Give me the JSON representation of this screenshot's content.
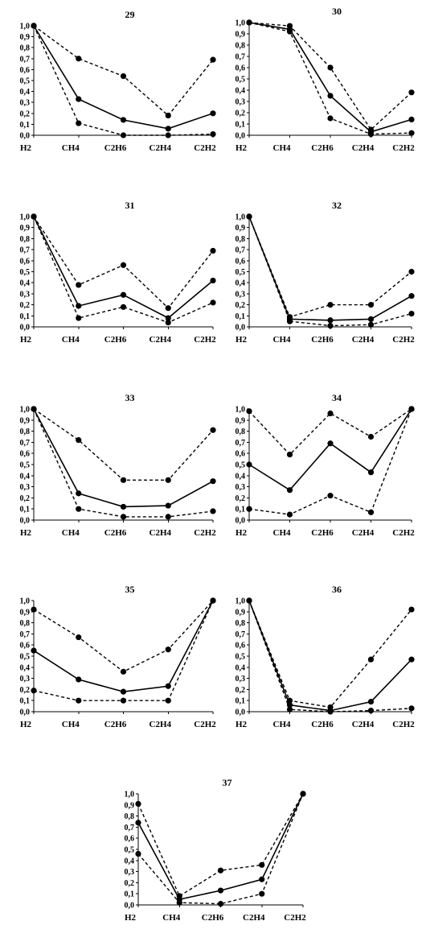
{
  "chart_data": [
    {
      "type": "line",
      "title": "29",
      "categories": [
        "H2",
        "CH4",
        "C2H6",
        "C2H4",
        "C2H2"
      ],
      "yticks": [
        "0,0",
        "0,1",
        "0,2",
        "0,3",
        "0,4",
        "0,5",
        "0,6",
        "0,7",
        "0,8",
        "0,9",
        "1,0"
      ],
      "ylim": [
        0,
        1
      ],
      "series": [
        {
          "style": "dashed",
          "values": [
            1.0,
            0.7,
            0.54,
            0.18,
            0.69
          ]
        },
        {
          "style": "solid",
          "values": [
            1.0,
            0.33,
            0.14,
            0.06,
            0.2
          ]
        },
        {
          "style": "dashed",
          "values": [
            1.0,
            0.11,
            0.0,
            0.0,
            0.01
          ]
        }
      ]
    },
    {
      "type": "line",
      "title": "30",
      "categories": [
        "H2",
        "CH4",
        "C2H6",
        "C2H4",
        "C2H2"
      ],
      "yticks": [
        "0,0",
        "0,1",
        "0,2",
        "0,3",
        "0,4",
        "0,5",
        "0,6",
        "0,7",
        "0,8",
        "0,9",
        "1,0"
      ],
      "ylim": [
        0,
        1
      ],
      "series": [
        {
          "style": "dashed",
          "values": [
            1.0,
            0.97,
            0.6,
            0.05,
            0.38
          ]
        },
        {
          "style": "solid",
          "values": [
            1.0,
            0.94,
            0.35,
            0.03,
            0.14
          ]
        },
        {
          "style": "dashed",
          "values": [
            1.0,
            0.92,
            0.15,
            0.01,
            0.02
          ]
        }
      ]
    },
    {
      "type": "line",
      "title": "31",
      "categories": [
        "H2",
        "CH4",
        "C2H6",
        "C2H4",
        "C2H2"
      ],
      "yticks": [
        "0,0",
        "0,1",
        "0,2",
        "0,3",
        "0,4",
        "0,5",
        "0,6",
        "0,7",
        "0,8",
        "0,9",
        "1,0"
      ],
      "ylim": [
        0,
        1
      ],
      "series": [
        {
          "style": "dashed",
          "values": [
            1.0,
            0.38,
            0.56,
            0.17,
            0.69
          ]
        },
        {
          "style": "solid",
          "values": [
            1.0,
            0.19,
            0.29,
            0.08,
            0.42
          ]
        },
        {
          "style": "dashed",
          "values": [
            1.0,
            0.08,
            0.18,
            0.04,
            0.22
          ]
        }
      ]
    },
    {
      "type": "line",
      "title": "32",
      "categories": [
        "H2",
        "CH4",
        "C2H6",
        "C2H4",
        "C2H2"
      ],
      "yticks": [
        "0,0",
        "0,1",
        "0,2",
        "0,3",
        "0,4",
        "0,5",
        "0,6",
        "0,7",
        "0,8",
        "0,9",
        "1,0"
      ],
      "ylim": [
        0,
        1
      ],
      "series": [
        {
          "style": "dashed",
          "values": [
            1.0,
            0.09,
            0.2,
            0.2,
            0.5
          ]
        },
        {
          "style": "solid",
          "values": [
            1.0,
            0.07,
            0.06,
            0.07,
            0.28
          ]
        },
        {
          "style": "dashed",
          "values": [
            1.0,
            0.05,
            0.01,
            0.02,
            0.12
          ]
        }
      ]
    },
    {
      "type": "line",
      "title": "33",
      "categories": [
        "H2",
        "CH4",
        "C2H6",
        "C2H4",
        "C2H2"
      ],
      "yticks": [
        "0,0",
        "0,1",
        "0,2",
        "0,3",
        "0,4",
        "0,5",
        "0,6",
        "0,7",
        "0,8",
        "0,9",
        "1,0"
      ],
      "ylim": [
        0,
        1
      ],
      "series": [
        {
          "style": "dashed",
          "values": [
            1.0,
            0.72,
            0.36,
            0.36,
            0.81
          ]
        },
        {
          "style": "solid",
          "values": [
            1.0,
            0.24,
            0.12,
            0.13,
            0.35
          ]
        },
        {
          "style": "dashed",
          "values": [
            1.0,
            0.1,
            0.03,
            0.03,
            0.08
          ]
        }
      ]
    },
    {
      "type": "line",
      "title": "34",
      "categories": [
        "H2",
        "CH4",
        "C2H6",
        "C2H4",
        "C2H2"
      ],
      "yticks": [
        "0,0",
        "0,1",
        "0,2",
        "0,3",
        "0,4",
        "0,5",
        "0,6",
        "0,7",
        "0,8",
        "0,9",
        "1,0"
      ],
      "ylim": [
        0,
        1
      ],
      "series": [
        {
          "style": "dashed",
          "values": [
            0.98,
            0.59,
            0.96,
            0.75,
            1.0
          ]
        },
        {
          "style": "solid",
          "values": [
            0.5,
            0.27,
            0.69,
            0.43,
            1.0
          ]
        },
        {
          "style": "dashed",
          "values": [
            0.1,
            0.05,
            0.22,
            0.07,
            1.0
          ]
        }
      ]
    },
    {
      "type": "line",
      "title": "35",
      "categories": [
        "H2",
        "CH4",
        "C2H6",
        "C2H4",
        "C2H2"
      ],
      "yticks": [
        "0,0",
        "0,1",
        "0,2",
        "0,3",
        "0,4",
        "0,5",
        "0,6",
        "0,7",
        "0,8",
        "0,9",
        "1,0"
      ],
      "ylim": [
        0,
        1
      ],
      "series": [
        {
          "style": "dashed",
          "values": [
            0.92,
            0.67,
            0.36,
            0.56,
            1.0
          ]
        },
        {
          "style": "solid",
          "values": [
            0.55,
            0.29,
            0.18,
            0.23,
            1.0
          ]
        },
        {
          "style": "dashed",
          "values": [
            0.19,
            0.1,
            0.1,
            0.1,
            1.0
          ]
        }
      ]
    },
    {
      "type": "line",
      "title": "36",
      "categories": [
        "H2",
        "CH4",
        "C2H6",
        "C2H4",
        "C2H2"
      ],
      "yticks": [
        "0,0",
        "0,1",
        "0,2",
        "0,3",
        "0,4",
        "0,5",
        "0,6",
        "0,7",
        "0,8",
        "0,9",
        "1,0"
      ],
      "ylim": [
        0,
        1
      ],
      "series": [
        {
          "style": "dashed",
          "values": [
            1.0,
            0.1,
            0.04,
            0.47,
            0.92
          ]
        },
        {
          "style": "solid",
          "values": [
            1.0,
            0.06,
            0.01,
            0.09,
            0.47
          ]
        },
        {
          "style": "dashed",
          "values": [
            1.0,
            0.02,
            0.0,
            0.01,
            0.03
          ]
        }
      ]
    },
    {
      "type": "line",
      "title": "37",
      "categories": [
        "H2",
        "CH4",
        "C2H6",
        "C2H4",
        "C2H2"
      ],
      "yticks": [
        "0,0",
        "0,1",
        "0,2",
        "0,3",
        "0,4",
        "0,5",
        "0,6",
        "0,7",
        "0,8",
        "0,9",
        "1,0"
      ],
      "ylim": [
        0,
        1
      ],
      "series": [
        {
          "style": "dashed",
          "values": [
            0.91,
            0.08,
            0.31,
            0.36,
            1.0
          ]
        },
        {
          "style": "solid",
          "values": [
            0.74,
            0.05,
            0.13,
            0.23,
            1.0
          ]
        },
        {
          "style": "dashed",
          "values": [
            0.46,
            0.02,
            0.01,
            0.1,
            1.0
          ]
        }
      ]
    }
  ]
}
